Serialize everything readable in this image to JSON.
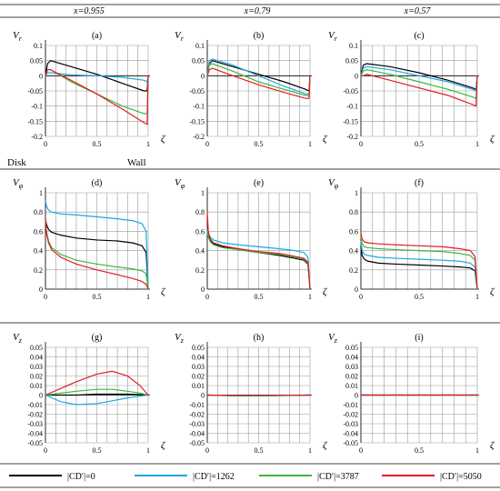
{
  "columns": [
    {
      "label": "x=0.955"
    },
    {
      "label": "x=0.79"
    },
    {
      "label": "x=0.57"
    }
  ],
  "row_labels": {
    "a": "Disk",
    "b": "Wall"
  },
  "legend": [
    {
      "label": "|CD′|=0",
      "color": "#000000"
    },
    {
      "label": "|CD′|=1262",
      "color": "#1ba8e0"
    },
    {
      "label": "|CD′|=3787",
      "color": "#3cb83c"
    },
    {
      "label": "|CD′|=5050",
      "color": "#e31b23"
    }
  ],
  "chart_data": [
    {
      "type": "line",
      "panel": "(a)",
      "ylabel": "Vr",
      "xlabel": "ζ",
      "xlim": [
        0,
        1
      ],
      "ylim": [
        -0.2,
        0.1
      ],
      "yticks": [
        "0.1",
        "0.05",
        "0",
        "-0.05",
        "-0.1",
        "-0.15",
        "-0.2"
      ],
      "xticks": [
        "0",
        "0.5",
        "1"
      ],
      "x": [
        0,
        0.02,
        0.05,
        0.25,
        0.5,
        0.75,
        0.96,
        0.99,
        1
      ],
      "series": [
        {
          "name": "|CD′|=0",
          "values": [
            0,
            0.04,
            0.05,
            0.03,
            0.005,
            -0.025,
            -0.05,
            -0.05,
            0
          ]
        },
        {
          "name": "|CD′|=1262",
          "values": [
            0,
            0.01,
            0.01,
            0.003,
            0,
            -0.005,
            -0.015,
            -0.02,
            0
          ]
        },
        {
          "name": "|CD′|=3787",
          "values": [
            0,
            0.02,
            0.02,
            -0.02,
            -0.06,
            -0.1,
            -0.125,
            -0.125,
            0
          ]
        },
        {
          "name": "|CD′|=5050",
          "values": [
            0,
            0.02,
            0.02,
            -0.015,
            -0.06,
            -0.11,
            -0.155,
            -0.16,
            0
          ]
        }
      ]
    },
    {
      "type": "line",
      "panel": "(b)",
      "ylabel": "Vr",
      "xlabel": "ζ",
      "xlim": [
        0,
        1
      ],
      "ylim": [
        -0.2,
        0.1
      ],
      "yticks": [
        "0.1",
        "0.05",
        "0",
        "-0.05",
        "-0.1",
        "-0.15",
        "-0.2"
      ],
      "xticks": [
        "0",
        "0.5",
        "1"
      ],
      "x": [
        0,
        0.02,
        0.05,
        0.25,
        0.5,
        0.75,
        0.96,
        0.99,
        1
      ],
      "series": [
        {
          "name": "|CD′|=0",
          "values": [
            0,
            0.04,
            0.05,
            0.03,
            0.005,
            -0.02,
            -0.045,
            -0.05,
            0
          ]
        },
        {
          "name": "|CD′|=1262",
          "values": [
            0,
            0.05,
            0.055,
            0.035,
            0,
            -0.035,
            -0.06,
            -0.06,
            0
          ]
        },
        {
          "name": "|CD′|=3787",
          "values": [
            0,
            0.035,
            0.04,
            0.015,
            -0.02,
            -0.045,
            -0.065,
            -0.065,
            0
          ]
        },
        {
          "name": "|CD′|=5050",
          "values": [
            0,
            0.02,
            0.025,
            0,
            -0.03,
            -0.055,
            -0.075,
            -0.075,
            0
          ]
        }
      ]
    },
    {
      "type": "line",
      "panel": "(c)",
      "ylabel": "Vr",
      "xlabel": "ζ",
      "xlim": [
        0,
        1
      ],
      "ylim": [
        -0.2,
        0.1
      ],
      "yticks": [
        "0.1",
        "0.05",
        "0",
        "-0.05",
        "-0.1",
        "-0.15",
        "-0.2"
      ],
      "xticks": [
        "0",
        "0.5",
        "1"
      ],
      "x": [
        0,
        0.02,
        0.05,
        0.25,
        0.5,
        0.75,
        0.96,
        0.99,
        1
      ],
      "series": [
        {
          "name": "|CD′|=0",
          "values": [
            0,
            0.035,
            0.04,
            0.03,
            0.01,
            -0.015,
            -0.04,
            -0.045,
            0
          ]
        },
        {
          "name": "|CD′|=1262",
          "values": [
            0,
            0.025,
            0.03,
            0.02,
            0,
            -0.02,
            -0.045,
            -0.05,
            0
          ]
        },
        {
          "name": "|CD′|=3787",
          "values": [
            0,
            0.015,
            0.02,
            0.005,
            -0.02,
            -0.045,
            -0.07,
            -0.075,
            0
          ]
        },
        {
          "name": "|CD′|=5050",
          "values": [
            0,
            0,
            0.005,
            -0.015,
            -0.04,
            -0.065,
            -0.095,
            -0.1,
            0
          ]
        }
      ]
    },
    {
      "type": "line",
      "panel": "(d)",
      "ylabel": "Vφ",
      "xlabel": "ζ",
      "xlim": [
        0,
        1
      ],
      "ylim": [
        0,
        1
      ],
      "yticks": [
        "1",
        "0.8",
        "0.6",
        "0.4",
        "0.2",
        "0"
      ],
      "xticks": [
        "0",
        "0.5",
        "1"
      ],
      "x": [
        0,
        0.01,
        0.03,
        0.06,
        0.15,
        0.3,
        0.5,
        0.7,
        0.85,
        0.94,
        0.98,
        1
      ],
      "series": [
        {
          "name": "|CD′|=0",
          "values": [
            0.72,
            0.67,
            0.62,
            0.59,
            0.56,
            0.53,
            0.51,
            0.5,
            0.48,
            0.45,
            0.38,
            0
          ]
        },
        {
          "name": "|CD′|=1262",
          "values": [
            0.92,
            0.86,
            0.82,
            0.8,
            0.78,
            0.77,
            0.75,
            0.73,
            0.71,
            0.68,
            0.6,
            0
          ]
        },
        {
          "name": "|CD′|=3787",
          "values": [
            0.72,
            0.6,
            0.5,
            0.43,
            0.36,
            0.3,
            0.26,
            0.23,
            0.21,
            0.19,
            0.16,
            0
          ]
        },
        {
          "name": "|CD′|=5050",
          "values": [
            0.72,
            0.58,
            0.48,
            0.41,
            0.33,
            0.26,
            0.2,
            0.15,
            0.11,
            0.08,
            0.05,
            0
          ]
        }
      ]
    },
    {
      "type": "line",
      "panel": "(e)",
      "ylabel": "Vφ",
      "xlabel": "ζ",
      "xlim": [
        0,
        1
      ],
      "ylim": [
        0,
        1
      ],
      "yticks": [
        "1",
        "0.8",
        "0.6",
        "0.4",
        "0.2",
        "0"
      ],
      "xticks": [
        "0",
        "0.5",
        "1"
      ],
      "x": [
        0,
        0.01,
        0.03,
        0.06,
        0.15,
        0.3,
        0.5,
        0.7,
        0.85,
        0.94,
        0.98,
        1
      ],
      "series": [
        {
          "name": "|CD′|=0",
          "values": [
            0.6,
            0.55,
            0.5,
            0.47,
            0.44,
            0.41,
            0.38,
            0.35,
            0.32,
            0.3,
            0.26,
            0
          ]
        },
        {
          "name": "|CD′|=1262",
          "values": [
            0.62,
            0.58,
            0.54,
            0.51,
            0.48,
            0.46,
            0.44,
            0.42,
            0.4,
            0.38,
            0.33,
            0
          ]
        },
        {
          "name": "|CD′|=3787",
          "values": [
            0.6,
            0.54,
            0.49,
            0.46,
            0.43,
            0.41,
            0.38,
            0.36,
            0.33,
            0.31,
            0.27,
            0
          ]
        },
        {
          "name": "|CD′|=5050",
          "values": [
            0.8,
            0.6,
            0.52,
            0.48,
            0.45,
            0.42,
            0.39,
            0.37,
            0.34,
            0.32,
            0.28,
            0
          ]
        }
      ]
    },
    {
      "type": "line",
      "panel": "(f)",
      "ylabel": "Vφ",
      "xlabel": "ζ",
      "xlim": [
        0,
        1
      ],
      "ylim": [
        0,
        1
      ],
      "yticks": [
        "1",
        "0.8",
        "0.6",
        "0.4",
        "0.2",
        "0"
      ],
      "xticks": [
        "0",
        "0.5",
        "1"
      ],
      "x": [
        0,
        0.01,
        0.03,
        0.06,
        0.15,
        0.3,
        0.5,
        0.7,
        0.85,
        0.94,
        0.98,
        1
      ],
      "series": [
        {
          "name": "|CD′|=0",
          "values": [
            0.45,
            0.35,
            0.31,
            0.29,
            0.27,
            0.26,
            0.25,
            0.24,
            0.23,
            0.22,
            0.19,
            0
          ]
        },
        {
          "name": "|CD′|=1262",
          "values": [
            0.5,
            0.4,
            0.36,
            0.35,
            0.33,
            0.32,
            0.31,
            0.3,
            0.29,
            0.27,
            0.23,
            0
          ]
        },
        {
          "name": "|CD′|=3787",
          "values": [
            0.55,
            0.47,
            0.44,
            0.43,
            0.42,
            0.41,
            0.4,
            0.39,
            0.37,
            0.35,
            0.3,
            0
          ]
        },
        {
          "name": "|CD′|=5050",
          "values": [
            0.58,
            0.52,
            0.49,
            0.48,
            0.47,
            0.46,
            0.45,
            0.44,
            0.42,
            0.4,
            0.34,
            0
          ]
        }
      ]
    },
    {
      "type": "line",
      "panel": "(g)",
      "ylabel": "Vz",
      "xlabel": "ζ",
      "xlim": [
        0,
        1
      ],
      "ylim": [
        -0.05,
        0.05
      ],
      "yticks": [
        "0.05",
        "0.04",
        "0.03",
        "0.02",
        "0.01",
        "0",
        "-0.01",
        "-0.02",
        "-0.03",
        "-0.04",
        "-0.05"
      ],
      "xticks": [
        "0",
        "0.5",
        "1"
      ],
      "x": [
        0,
        0.15,
        0.3,
        0.5,
        0.65,
        0.8,
        0.92,
        1
      ],
      "series": [
        {
          "name": "|CD′|=0",
          "values": [
            0,
            0,
            0,
            0.001,
            0.001,
            0.001,
            0.0005,
            0
          ]
        },
        {
          "name": "|CD′|=1262",
          "values": [
            0,
            -0.007,
            -0.01,
            -0.009,
            -0.006,
            -0.003,
            -0.001,
            0
          ]
        },
        {
          "name": "|CD′|=3787",
          "values": [
            0,
            0.002,
            0.004,
            0.006,
            0.006,
            0.004,
            0.002,
            0
          ]
        },
        {
          "name": "|CD′|=5050",
          "values": [
            0,
            0.007,
            0.014,
            0.022,
            0.025,
            0.02,
            0.01,
            0
          ]
        }
      ]
    },
    {
      "type": "line",
      "panel": "(h)",
      "ylabel": "Vz",
      "xlabel": "ζ",
      "xlim": [
        0,
        1
      ],
      "ylim": [
        -0.05,
        0.05
      ],
      "yticks": [
        "0.05",
        "0.04",
        "0.03",
        "0.02",
        "0.01",
        "0",
        "-0.01",
        "-0.02",
        "-0.03",
        "-0.04",
        "-0.05"
      ],
      "xticks": [
        "0",
        "0.5",
        "1"
      ],
      "x": [
        0,
        0.25,
        0.5,
        0.75,
        1
      ],
      "series": [
        {
          "name": "|CD′|=0",
          "values": [
            0,
            -0.0005,
            -0.0005,
            -0.0004,
            0
          ]
        },
        {
          "name": "|CD′|=1262",
          "values": [
            0,
            -0.0008,
            -0.0008,
            -0.0005,
            0
          ]
        },
        {
          "name": "|CD′|=3787",
          "values": [
            0,
            -0.0006,
            -0.0006,
            -0.0004,
            0
          ]
        },
        {
          "name": "|CD′|=5050",
          "values": [
            0,
            -0.0003,
            -0.0003,
            -0.0002,
            0
          ]
        }
      ]
    },
    {
      "type": "line",
      "panel": "(i)",
      "ylabel": "Vz",
      "xlabel": "ζ",
      "xlim": [
        0,
        1
      ],
      "ylim": [
        -0.05,
        0.05
      ],
      "yticks": [
        "0.05",
        "0.04",
        "0.03",
        "0.02",
        "0.01",
        "0",
        "-0.01",
        "-0.02",
        "-0.03",
        "-0.04",
        "-0.05"
      ],
      "xticks": [
        "0",
        "0.5",
        "1"
      ],
      "x": [
        0,
        0.25,
        0.5,
        0.75,
        1
      ],
      "series": [
        {
          "name": "|CD′|=0",
          "values": [
            0,
            0,
            0,
            0,
            0
          ]
        },
        {
          "name": "|CD′|=1262",
          "values": [
            0,
            0,
            0,
            0,
            0
          ]
        },
        {
          "name": "|CD′|=3787",
          "values": [
            0,
            0,
            0,
            0,
            0
          ]
        },
        {
          "name": "|CD′|=5050",
          "values": [
            0,
            0,
            0,
            0,
            0
          ]
        }
      ]
    }
  ]
}
